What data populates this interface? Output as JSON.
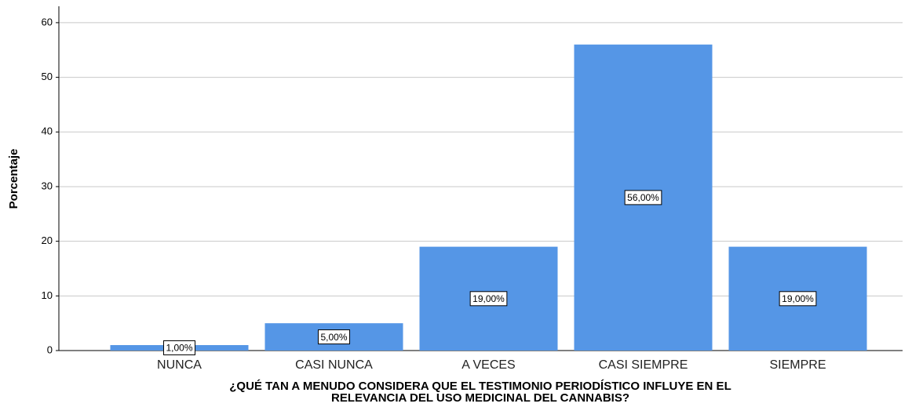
{
  "chart_data": {
    "type": "bar",
    "x_label": [
      "¿QUÉ TAN A MENUDO CONSIDERA QUE EL TESTIMONIO PERIODÍSTICO INFLUYE EN EL",
      "RELEVANCIA DEL USO MEDICINAL DEL CANNABIS?"
    ],
    "y_label": "Porcentaje",
    "categories": [
      "NUNCA",
      "CASI NUNCA",
      "A VECES",
      "CASI SIEMPRE",
      "SIEMPRE"
    ],
    "values": [
      1,
      5,
      19,
      56,
      19
    ],
    "value_labels": [
      "1,00%",
      "5,00%",
      "19,00%",
      "56,00%",
      "19,00%"
    ],
    "color": "#5596e6",
    "ylim": [
      0,
      63
    ],
    "yticks": [
      0,
      10,
      20,
      30,
      40,
      50,
      60
    ],
    "grid": true
  }
}
